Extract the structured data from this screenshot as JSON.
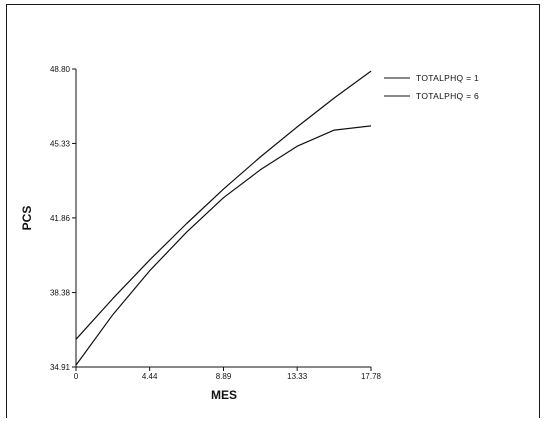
{
  "chart_data": {
    "type": "line",
    "title": "",
    "xlabel": "MES",
    "ylabel": "PCS",
    "xlim": [
      0,
      17.78
    ],
    "ylim": [
      34.91,
      48.8
    ],
    "x_ticks": [
      "0",
      "4.44",
      "8.89",
      "13.33",
      "17.78"
    ],
    "y_ticks": [
      "34.91",
      "38.38",
      "41.86",
      "45.33",
      "48.80"
    ],
    "grid": false,
    "legend_position": "top-right",
    "series": [
      {
        "name": "TOTALPHQ = 1",
        "x": [
          0,
          2.22,
          4.44,
          6.67,
          8.89,
          11.11,
          13.33,
          15.56,
          17.78
        ],
        "y": [
          36.2,
          38.1,
          39.9,
          41.6,
          43.2,
          44.7,
          46.1,
          47.45,
          48.7
        ]
      },
      {
        "name": "TOTALPHQ = 6",
        "x": [
          0,
          2.22,
          4.44,
          6.67,
          8.89,
          11.11,
          13.33,
          15.56,
          17.78
        ],
        "y": [
          35.0,
          37.35,
          39.4,
          41.2,
          42.8,
          44.1,
          45.2,
          45.95,
          46.15
        ]
      }
    ],
    "line_color": "#111111"
  }
}
